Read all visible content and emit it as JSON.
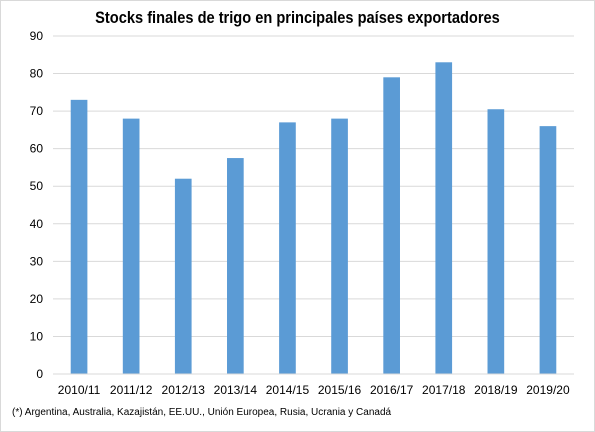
{
  "chart_data": {
    "type": "bar",
    "title": "Stocks finales de trigo en principales países exportadores",
    "categories": [
      "2010/11",
      "2011/12",
      "2012/13",
      "2013/14",
      "2014/15",
      "2015/16",
      "2016/17",
      "2017/18",
      "2018/19",
      "2019/20"
    ],
    "values": [
      73,
      68,
      52,
      57.5,
      67,
      68,
      79,
      83,
      70.5,
      66
    ],
    "ylim": [
      0,
      90
    ],
    "yticks": [
      0,
      10,
      20,
      30,
      40,
      50,
      60,
      70,
      80,
      90
    ],
    "grid": true,
    "legend": "none",
    "bar_color": "#5b9bd5",
    "footnote": "(*) Argentina, Australia, Kazajistán, EE.UU., Unión Europea, Rusia, Ucrania y Canadá"
  }
}
